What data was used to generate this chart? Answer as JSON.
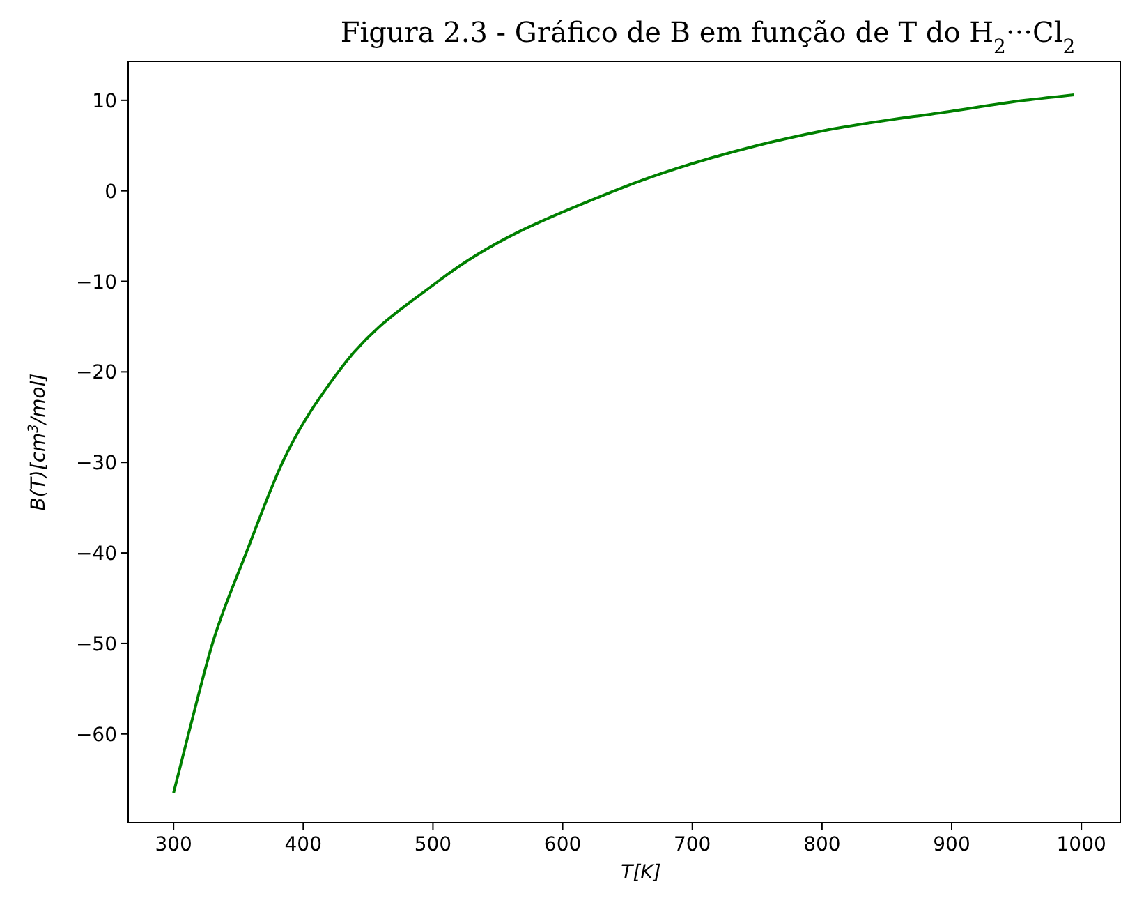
{
  "chart_data": {
    "type": "line",
    "title": "Figura 2.3 - Gráfico de B em função de T do H$_{2}$···Cl$_{2}$",
    "xlabel": "T[K]",
    "ylabel": "B(T)[cm$^{3}$/mol]",
    "x": [
      300,
      311.5,
      330,
      356,
      384,
      427,
      504,
      640,
      750,
      800,
      900,
      957,
      994.5
    ],
    "series": [
      {
        "color": "#008000",
        "values": [
          -66.5,
          -60,
          -50,
          -40,
          -30,
          -20,
          -10,
          0,
          5,
          6.6,
          8.8,
          10,
          10.6
        ]
      }
    ],
    "xlim": [
      265,
      1030
    ],
    "xticks": [
      300,
      400,
      500,
      600,
      700,
      800,
      900,
      1000
    ],
    "ylim": [
      -69.8,
      14.3
    ],
    "yticks": [
      -60,
      -50,
      -40,
      -30,
      -20,
      -10,
      0,
      10
    ],
    "grid": false,
    "marker": "none",
    "line_style": "solid"
  }
}
